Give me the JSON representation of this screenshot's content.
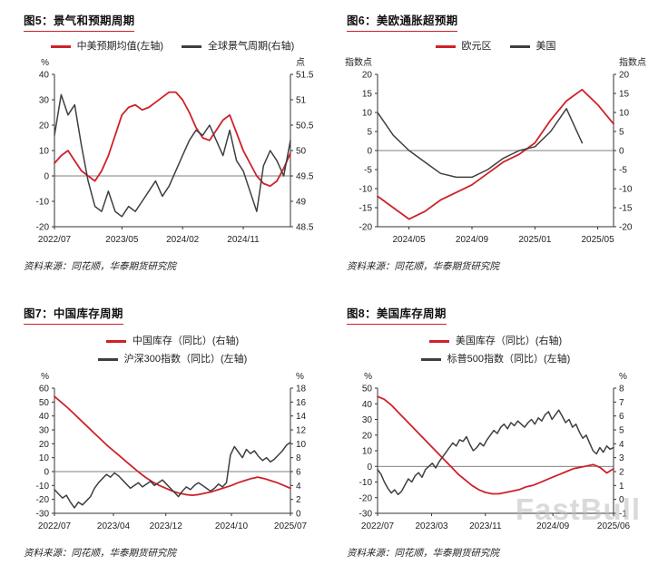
{
  "source_note": "资料来源：同花顺，华泰期货研究院",
  "watermark": "FastBull",
  "colors": {
    "red": "#cf2129",
    "dark": "#3f3f3f",
    "axis": "#333333"
  },
  "chart_data": [
    {
      "type": "line",
      "title": "图5：景气和预期周期",
      "left_unit": "%",
      "right_unit": "点",
      "left_range": [
        -20,
        40
      ],
      "right_range": [
        48.5,
        51.5
      ],
      "left_ticks": [
        40,
        30,
        20,
        10,
        0,
        -10,
        -20
      ],
      "right_ticks": [
        51.5,
        51,
        50.5,
        50,
        49.5,
        49,
        48.5
      ],
      "baseline_left": 0,
      "legend_rows": 1,
      "x_ticks": [
        {
          "label": "2022/07",
          "pos": 0
        },
        {
          "label": "2023/05",
          "pos": 0.286
        },
        {
          "label": "2024/02",
          "pos": 0.543
        },
        {
          "label": "2024/11",
          "pos": 0.8
        }
      ],
      "series": [
        {
          "name": "中美预期均值(左轴)",
          "axis": "left",
          "color": "red",
          "values": [
            5,
            8,
            10,
            6,
            2,
            0,
            -2,
            2,
            8,
            16,
            24,
            27,
            28,
            26,
            27,
            29,
            31,
            33,
            33,
            30,
            25,
            19,
            15,
            14,
            18,
            22,
            24,
            17,
            10,
            5,
            0,
            -3,
            -4,
            -2,
            3,
            9
          ]
        },
        {
          "name": "全球景气周期(右轴)",
          "axis": "right",
          "color": "dark",
          "values": [
            50.3,
            51.1,
            50.7,
            50.9,
            50.1,
            49.4,
            48.9,
            48.8,
            49.2,
            48.8,
            48.7,
            48.9,
            48.8,
            49.0,
            49.2,
            49.4,
            49.1,
            49.3,
            49.6,
            49.9,
            50.2,
            50.4,
            50.3,
            50.5,
            50.2,
            49.9,
            50.4,
            49.8,
            49.6,
            49.2,
            48.8,
            49.7,
            50.0,
            49.8,
            49.5,
            50.2
          ]
        }
      ]
    },
    {
      "type": "line",
      "title": "图6：美欧通胀超预期",
      "left_unit": "指数点",
      "right_unit": "指数点",
      "left_range": [
        -20,
        20
      ],
      "right_range": [
        -20,
        20
      ],
      "left_ticks": [
        20,
        15,
        10,
        5,
        0,
        -5,
        -10,
        -15,
        -20
      ],
      "right_ticks": [
        20,
        15,
        10,
        5,
        0,
        -5,
        -10,
        -15,
        -20
      ],
      "baseline_left": 0,
      "legend_rows": 1,
      "x_ticks": [
        {
          "label": "2024/05",
          "pos": 0.133
        },
        {
          "label": "2024/09",
          "pos": 0.4
        },
        {
          "label": "2025/01",
          "pos": 0.667
        },
        {
          "label": "2025/05",
          "pos": 0.933
        }
      ],
      "series": [
        {
          "name": "欧元区",
          "axis": "left",
          "color": "red",
          "values": [
            -12,
            -15,
            -18,
            -16,
            -13,
            -11,
            -9,
            -6,
            -3,
            -1,
            2,
            8,
            13,
            16,
            12,
            7
          ]
        },
        {
          "name": "美国",
          "axis": "left",
          "color": "dark",
          "span": [
            0,
            0.867
          ],
          "values": [
            10,
            4,
            0,
            -3,
            -6,
            -7,
            -7,
            -5,
            -2,
            0,
            1,
            5,
            11,
            2
          ]
        }
      ]
    },
    {
      "type": "line",
      "title": "图7：中国库存周期",
      "left_unit": "%",
      "right_unit": "%",
      "left_range": [
        -30,
        60
      ],
      "right_range": [
        0,
        18
      ],
      "left_ticks": [
        60,
        50,
        40,
        30,
        20,
        10,
        0,
        -10,
        -20,
        -30
      ],
      "right_ticks": [
        18,
        16,
        14,
        12,
        10,
        8,
        6,
        4,
        2,
        0
      ],
      "baseline_left": 0,
      "legend_rows": 2,
      "x_ticks": [
        {
          "label": "2022/07",
          "pos": 0
        },
        {
          "label": "2023/04",
          "pos": 0.25
        },
        {
          "label": "2023/12",
          "pos": 0.472
        },
        {
          "label": "2024/10",
          "pos": 0.75
        },
        {
          "label": "2025/07",
          "pos": 1
        }
      ],
      "series": [
        {
          "name": "中国库存（同比）(右轴)",
          "axis": "right",
          "color": "red",
          "values": [
            16.8,
            16.0,
            15.2,
            14.3,
            13.4,
            12.5,
            11.6,
            10.7,
            9.8,
            9.0,
            8.2,
            7.4,
            6.6,
            5.8,
            5.1,
            4.5,
            4.0,
            3.6,
            3.2,
            2.9,
            2.7,
            2.6,
            2.7,
            2.9,
            3.1,
            3.4,
            3.7,
            4.0,
            4.4,
            4.7,
            5.0,
            5.2,
            5.0,
            4.7,
            4.4,
            4.0,
            3.6
          ]
        },
        {
          "name": "沪深300指数（同比）(左轴)",
          "axis": "left",
          "color": "dark",
          "values": [
            -13,
            -16,
            -19,
            -17,
            -22,
            -26,
            -22,
            -24,
            -21,
            -18,
            -12,
            -8,
            -5,
            -2,
            -4,
            -1,
            -3,
            -6,
            -9,
            -12,
            -10,
            -8,
            -11,
            -9,
            -7,
            -10,
            -8,
            -6,
            -9,
            -12,
            -15,
            -18,
            -14,
            -11,
            -13,
            -10,
            -8,
            -10,
            -12,
            -14,
            -12,
            -9,
            -11,
            -8,
            12,
            18,
            14,
            10,
            16,
            13,
            15,
            11,
            8,
            10,
            7,
            9,
            12,
            15,
            19,
            21
          ]
        }
      ]
    },
    {
      "type": "line",
      "title": "图8：美国库存周期",
      "left_unit": "%",
      "right_unit": "%",
      "left_range": [
        -30,
        50
      ],
      "right_range": [
        -1,
        8
      ],
      "left_ticks": [
        50,
        40,
        30,
        20,
        10,
        0,
        -10,
        -20,
        -30
      ],
      "right_ticks": [
        8,
        7,
        6,
        5,
        4,
        3,
        2,
        1,
        0,
        -1
      ],
      "baseline_left": 0,
      "legend_rows": 2,
      "x_ticks": [
        {
          "label": "2022/07",
          "pos": 0
        },
        {
          "label": "2023/03",
          "pos": 0.229
        },
        {
          "label": "2023/11",
          "pos": 0.457
        },
        {
          "label": "2024/09",
          "pos": 0.743
        },
        {
          "label": "2025/06",
          "pos": 1
        }
      ],
      "series": [
        {
          "name": "美国库存（同比）(右轴)",
          "axis": "right",
          "color": "red",
          "values": [
            7.4,
            7.2,
            6.8,
            6.3,
            5.8,
            5.3,
            4.8,
            4.3,
            3.8,
            3.3,
            2.8,
            2.3,
            1.8,
            1.4,
            1.0,
            0.7,
            0.5,
            0.4,
            0.4,
            0.5,
            0.6,
            0.7,
            0.9,
            1.0,
            1.2,
            1.4,
            1.6,
            1.8,
            2.0,
            2.2,
            2.3,
            2.4,
            2.5,
            2.3,
            1.9,
            2.2
          ]
        },
        {
          "name": "标普500指数（同比）(左轴)",
          "axis": "left",
          "color": "dark",
          "values": [
            -2,
            -5,
            -10,
            -14,
            -17,
            -15,
            -18,
            -16,
            -12,
            -8,
            -10,
            -6,
            -4,
            -7,
            -2,
            0,
            2,
            -1,
            3,
            6,
            9,
            12,
            15,
            13,
            17,
            16,
            19,
            14,
            10,
            12,
            15,
            13,
            17,
            20,
            23,
            21,
            25,
            27,
            24,
            28,
            26,
            29,
            27,
            25,
            28,
            30,
            27,
            31,
            29,
            33,
            35,
            30,
            33,
            36,
            32,
            28,
            30,
            25,
            27,
            22,
            18,
            20,
            15,
            10,
            8,
            12,
            9,
            13,
            11,
            12
          ]
        }
      ]
    }
  ]
}
